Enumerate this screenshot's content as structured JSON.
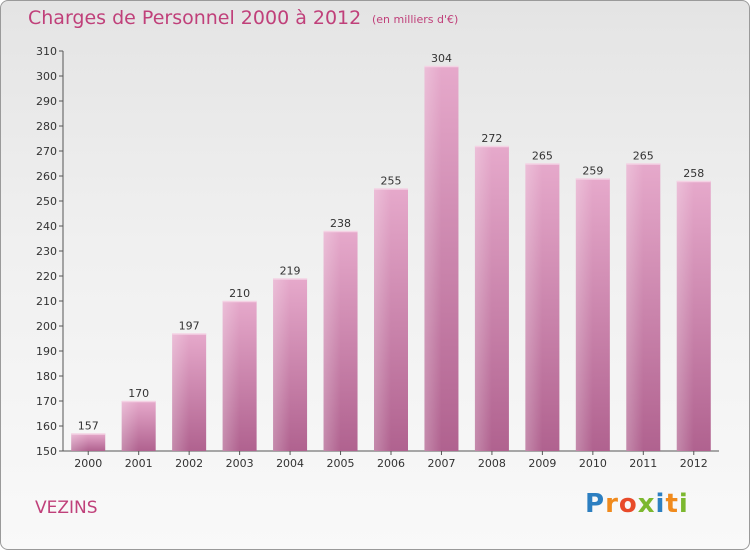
{
  "title": "Charges de Personnel 2000 à 2012",
  "subtitle": "(en milliers d'€)",
  "place": "VEZINS",
  "logo": {
    "letters": [
      "P",
      "r",
      "o",
      "x",
      "i",
      "t",
      "i"
    ],
    "colors": [
      "#2c7fc1",
      "#f08a1c",
      "#e84a2a",
      "#7cb82f",
      "#2c7fc1",
      "#f08a1c",
      "#7cb82f"
    ]
  },
  "chart_data": {
    "type": "bar",
    "title": "Charges de Personnel 2000 à 2012",
    "categories": [
      "2000",
      "2001",
      "2002",
      "2003",
      "2004",
      "2005",
      "2006",
      "2007",
      "2008",
      "2009",
      "2010",
      "2011",
      "2012"
    ],
    "values": [
      157,
      170,
      197,
      210,
      219,
      238,
      255,
      304,
      272,
      265,
      259,
      265,
      258
    ],
    "ylim": [
      150,
      310
    ],
    "yticks": [
      150,
      160,
      170,
      180,
      190,
      200,
      210,
      220,
      230,
      240,
      250,
      260,
      270,
      280,
      290,
      300,
      310
    ],
    "grid": false,
    "bar_color": "#d98fb8"
  }
}
